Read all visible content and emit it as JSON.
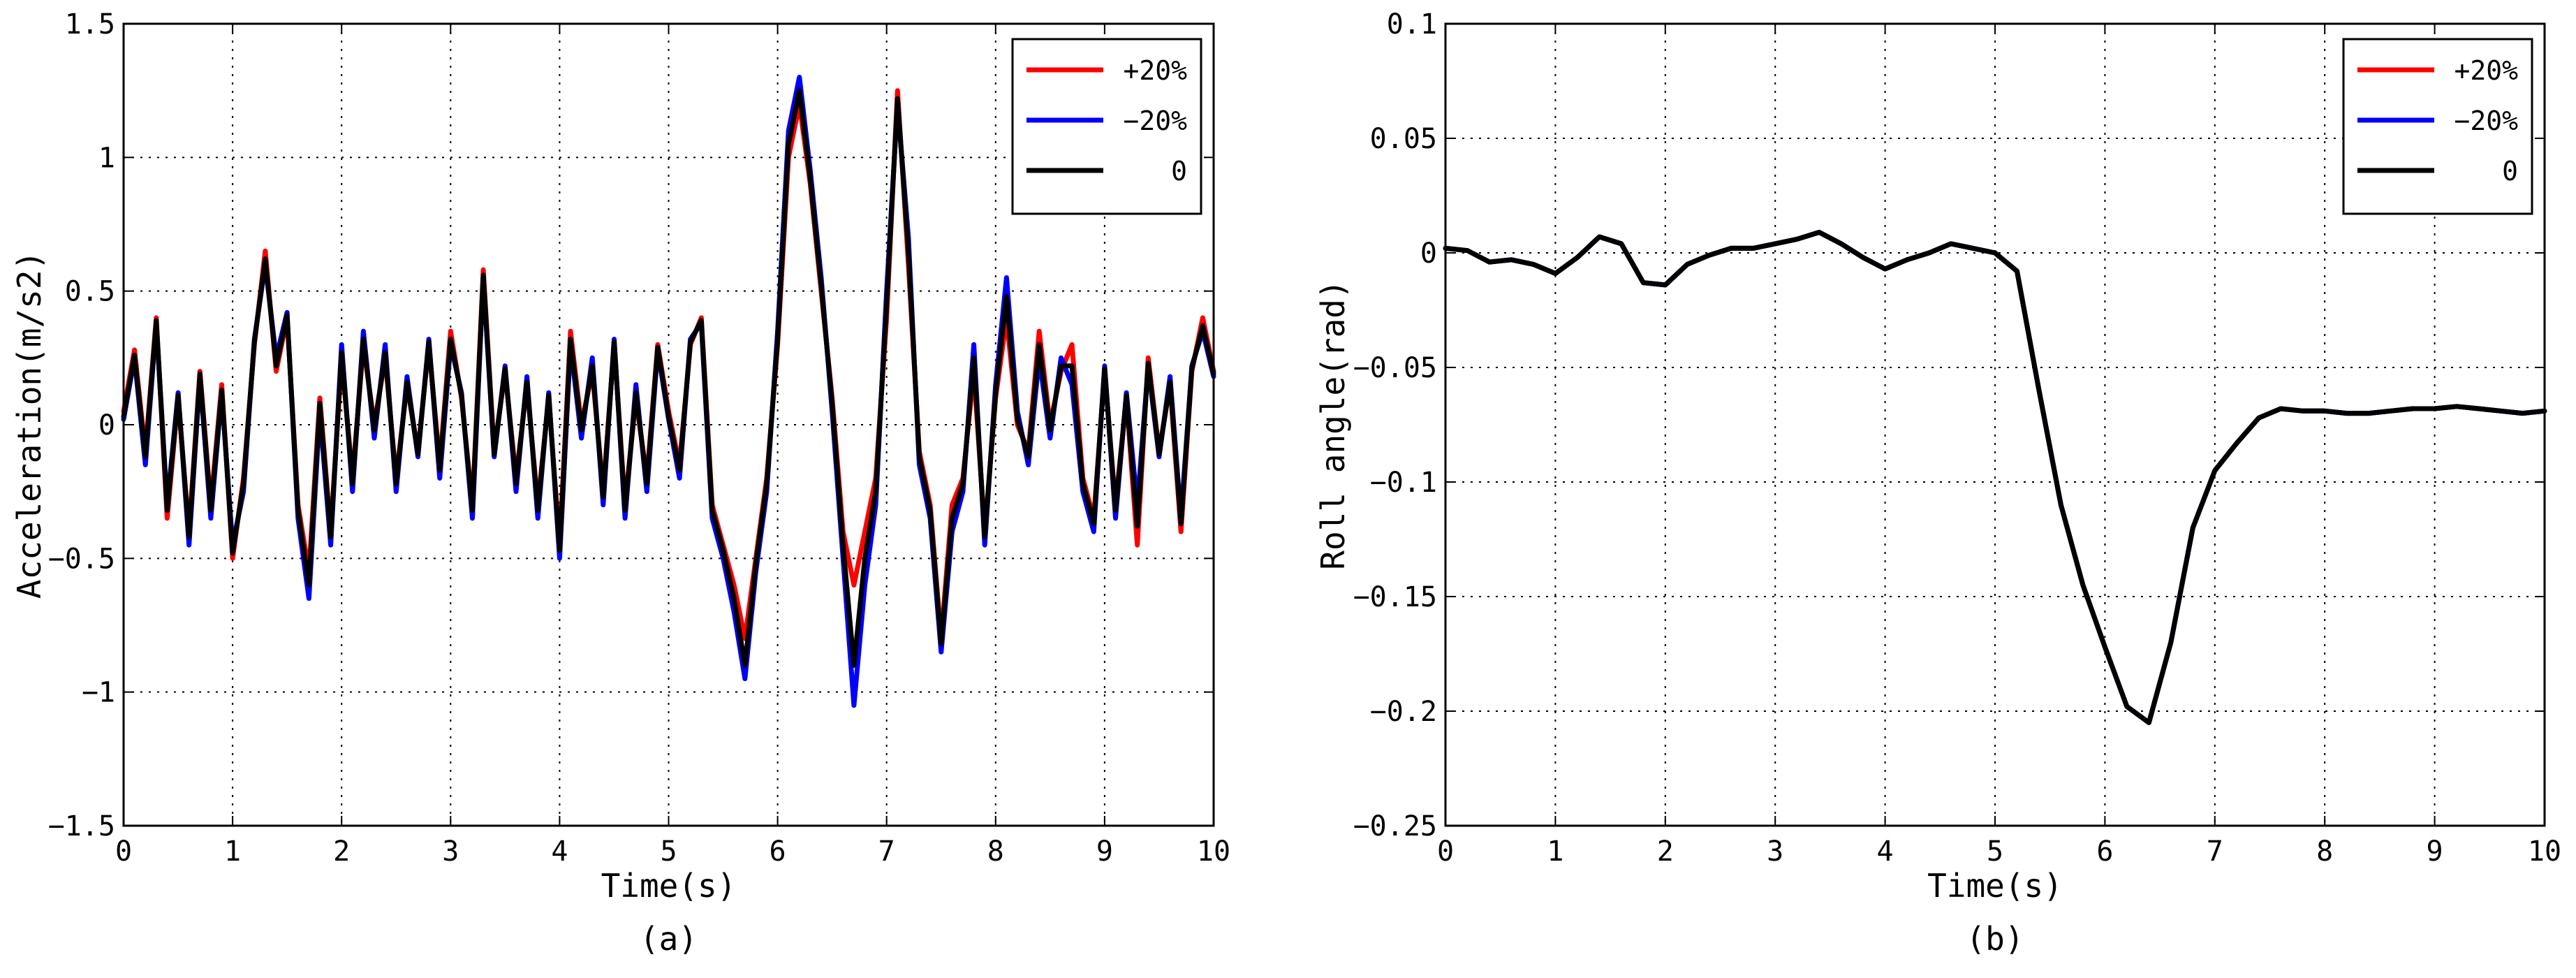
{
  "chart_data": [
    {
      "type": "line",
      "caption": "(a)",
      "xlabel": "Time(s)",
      "ylabel": "Acceleration(m/s2)",
      "xlim": [
        0,
        10
      ],
      "ylim": [
        -1.5,
        1.5
      ],
      "xticks": [
        0,
        1,
        2,
        3,
        4,
        5,
        6,
        7,
        8,
        9,
        10
      ],
      "yticks": [
        -1.5,
        -1,
        -0.5,
        0,
        0.5,
        1,
        1.5
      ],
      "xtick_labels": [
        "0",
        "1",
        "2",
        "3",
        "4",
        "5",
        "6",
        "7",
        "8",
        "9",
        "10"
      ],
      "ytick_labels": [
        "-1.5",
        "-1",
        "-0.5",
        "0",
        "0.5",
        "1",
        "1.5"
      ],
      "grid": true,
      "legend_position": "top-right",
      "x": [
        0,
        0.1,
        0.2,
        0.3,
        0.4,
        0.5,
        0.6,
        0.7,
        0.8,
        0.9,
        1.0,
        1.1,
        1.2,
        1.3,
        1.4,
        1.5,
        1.6,
        1.7,
        1.8,
        1.9,
        2.0,
        2.1,
        2.2,
        2.3,
        2.4,
        2.5,
        2.6,
        2.7,
        2.8,
        2.9,
        3.0,
        3.1,
        3.2,
        3.3,
        3.4,
        3.5,
        3.6,
        3.7,
        3.8,
        3.9,
        4.0,
        4.1,
        4.2,
        4.3,
        4.4,
        4.5,
        4.6,
        4.7,
        4.8,
        4.9,
        5.0,
        5.1,
        5.2,
        5.3,
        5.4,
        5.5,
        5.6,
        5.7,
        5.8,
        5.9,
        6.0,
        6.1,
        6.2,
        6.3,
        6.4,
        6.5,
        6.6,
        6.7,
        6.8,
        6.9,
        7.0,
        7.1,
        7.2,
        7.3,
        7.4,
        7.5,
        7.6,
        7.7,
        7.8,
        7.9,
        8.0,
        8.1,
        8.2,
        8.3,
        8.4,
        8.5,
        8.6,
        8.7,
        8.8,
        8.9,
        9.0,
        9.1,
        9.2,
        9.3,
        9.4,
        9.5,
        9.6,
        9.7,
        9.8,
        9.9,
        10.0
      ],
      "series": [
        {
          "name": "+20%",
          "color": "#ff0000",
          "values": [
            0.05,
            0.28,
            -0.1,
            0.4,
            -0.35,
            0.1,
            -0.4,
            0.2,
            -0.3,
            0.15,
            -0.5,
            -0.2,
            0.3,
            0.65,
            0.2,
            0.4,
            -0.3,
            -0.55,
            0.1,
            -0.4,
            0.25,
            -0.2,
            0.3,
            0.0,
            0.25,
            -0.2,
            0.15,
            -0.1,
            0.3,
            -0.15,
            0.35,
            0.1,
            -0.3,
            0.58,
            -0.1,
            0.2,
            -0.2,
            0.15,
            -0.3,
            0.1,
            -0.45,
            0.35,
            0.0,
            0.2,
            -0.25,
            0.3,
            -0.3,
            0.1,
            -0.2,
            0.3,
            0.05,
            -0.15,
            0.3,
            0.4,
            -0.3,
            -0.45,
            -0.6,
            -0.8,
            -0.5,
            -0.2,
            0.3,
            1.0,
            1.2,
            0.9,
            0.5,
            0.1,
            -0.4,
            -0.6,
            -0.4,
            -0.2,
            0.4,
            1.25,
            0.6,
            -0.1,
            -0.3,
            -0.8,
            -0.3,
            -0.2,
            0.2,
            -0.4,
            0.1,
            0.4,
            0.0,
            -0.1,
            0.35,
            0.0,
            0.2,
            0.3,
            -0.2,
            -0.35,
            0.2,
            -0.3,
            0.1,
            -0.45,
            0.25,
            -0.1,
            0.15,
            -0.4,
            0.2,
            0.4,
            0.2
          ]
        },
        {
          "name": "-20%",
          "color": "#0000ff",
          "values": [
            0.02,
            0.25,
            -0.15,
            0.38,
            -0.3,
            0.12,
            -0.45,
            0.18,
            -0.35,
            0.12,
            -0.45,
            -0.25,
            0.32,
            0.6,
            0.25,
            0.42,
            -0.35,
            -0.65,
            0.05,
            -0.45,
            0.3,
            -0.25,
            0.35,
            -0.05,
            0.3,
            -0.25,
            0.18,
            -0.12,
            0.32,
            -0.2,
            0.3,
            0.12,
            -0.35,
            0.55,
            -0.12,
            0.22,
            -0.25,
            0.18,
            -0.35,
            0.12,
            -0.5,
            0.3,
            -0.05,
            0.25,
            -0.3,
            0.32,
            -0.35,
            0.15,
            -0.25,
            0.28,
            0.02,
            -0.2,
            0.32,
            0.38,
            -0.35,
            -0.5,
            -0.7,
            -0.95,
            -0.55,
            -0.25,
            0.35,
            1.1,
            1.3,
            0.95,
            0.55,
            0.05,
            -0.5,
            -1.05,
            -0.6,
            -0.3,
            0.5,
            1.2,
            0.7,
            -0.15,
            -0.35,
            -0.85,
            -0.4,
            -0.25,
            0.3,
            -0.45,
            0.15,
            0.55,
            0.05,
            -0.15,
            0.25,
            -0.05,
            0.25,
            0.15,
            -0.25,
            -0.4,
            0.22,
            -0.35,
            0.12,
            -0.3,
            0.22,
            -0.12,
            0.18,
            -0.35,
            0.22,
            0.35,
            0.18
          ]
        },
        {
          "name": "0",
          "color": "#000000",
          "values": [
            0.03,
            0.26,
            -0.12,
            0.39,
            -0.32,
            0.11,
            -0.42,
            0.19,
            -0.32,
            0.13,
            -0.48,
            -0.22,
            0.31,
            0.62,
            0.22,
            0.41,
            -0.32,
            -0.6,
            0.08,
            -0.42,
            0.27,
            -0.22,
            0.32,
            -0.02,
            0.27,
            -0.22,
            0.16,
            -0.11,
            0.31,
            -0.17,
            0.32,
            0.11,
            -0.32,
            0.56,
            -0.11,
            0.21,
            -0.22,
            0.16,
            -0.32,
            0.11,
            -0.47,
            0.32,
            -0.02,
            0.22,
            -0.27,
            0.31,
            -0.32,
            0.12,
            -0.22,
            0.29,
            0.03,
            -0.17,
            0.31,
            0.39,
            -0.32,
            -0.47,
            -0.65,
            -0.9,
            -0.52,
            -0.22,
            0.32,
            1.05,
            1.25,
            0.92,
            0.52,
            0.08,
            -0.45,
            -0.9,
            -0.5,
            -0.25,
            0.45,
            1.22,
            0.65,
            -0.12,
            -0.32,
            -0.82,
            -0.35,
            -0.22,
            0.25,
            -0.42,
            0.12,
            0.48,
            0.02,
            -0.12,
            0.3,
            -0.02,
            0.22,
            0.22,
            -0.22,
            -0.37,
            0.21,
            -0.32,
            0.11,
            -0.38,
            0.23,
            -0.11,
            0.16,
            -0.37,
            0.21,
            0.37,
            0.19
          ]
        }
      ]
    },
    {
      "type": "line",
      "caption": "(b)",
      "xlabel": "Time(s)",
      "ylabel": "Roll angle(rad)",
      "xlim": [
        0,
        10
      ],
      "ylim": [
        -0.25,
        0.1
      ],
      "xticks": [
        0,
        1,
        2,
        3,
        4,
        5,
        6,
        7,
        8,
        9,
        10
      ],
      "yticks": [
        -0.25,
        -0.2,
        -0.15,
        -0.1,
        -0.05,
        0,
        0.05,
        0.1
      ],
      "xtick_labels": [
        "0",
        "1",
        "2",
        "3",
        "4",
        "5",
        "6",
        "7",
        "8",
        "9",
        "10"
      ],
      "ytick_labels": [
        "-0.25",
        "-0.2",
        "-0.15",
        "-0.1",
        "-0.05",
        "0",
        "0.05",
        "0.1"
      ],
      "grid": true,
      "legend_position": "top-right",
      "x": [
        0,
        0.2,
        0.4,
        0.6,
        0.8,
        1.0,
        1.2,
        1.4,
        1.6,
        1.8,
        2.0,
        2.2,
        2.4,
        2.6,
        2.8,
        3.0,
        3.2,
        3.4,
        3.6,
        3.8,
        4.0,
        4.2,
        4.4,
        4.6,
        4.8,
        5.0,
        5.2,
        5.4,
        5.6,
        5.8,
        6.0,
        6.2,
        6.4,
        6.6,
        6.8,
        7.0,
        7.2,
        7.4,
        7.6,
        7.8,
        8.0,
        8.2,
        8.4,
        8.6,
        8.8,
        9.0,
        9.2,
        9.4,
        9.6,
        9.8,
        10.0
      ],
      "series": [
        {
          "name": "+20%",
          "color": "#ff0000",
          "values": [
            0.002,
            0.001,
            -0.004,
            -0.003,
            -0.005,
            -0.009,
            -0.002,
            0.007,
            0.004,
            -0.013,
            -0.014,
            -0.005,
            -0.001,
            0.002,
            0.002,
            0.004,
            0.006,
            0.009,
            0.004,
            -0.002,
            -0.007,
            -0.003,
            0.0,
            0.004,
            0.002,
            0.0,
            -0.008,
            -0.06,
            -0.11,
            -0.145,
            -0.172,
            -0.198,
            -0.205,
            -0.17,
            -0.12,
            -0.095,
            -0.083,
            -0.072,
            -0.068,
            -0.069,
            -0.069,
            -0.07,
            -0.07,
            -0.069,
            -0.068,
            -0.068,
            -0.067,
            -0.068,
            -0.069,
            -0.07,
            -0.069
          ]
        },
        {
          "name": "-20%",
          "color": "#0000ff",
          "values": [
            0.002,
            0.001,
            -0.004,
            -0.003,
            -0.005,
            -0.009,
            -0.002,
            0.007,
            0.004,
            -0.013,
            -0.014,
            -0.005,
            -0.001,
            0.002,
            0.002,
            0.004,
            0.006,
            0.009,
            0.004,
            -0.002,
            -0.007,
            -0.003,
            0.0,
            0.004,
            0.002,
            0.0,
            -0.008,
            -0.06,
            -0.11,
            -0.145,
            -0.172,
            -0.198,
            -0.205,
            -0.17,
            -0.12,
            -0.095,
            -0.083,
            -0.072,
            -0.068,
            -0.069,
            -0.069,
            -0.07,
            -0.07,
            -0.069,
            -0.068,
            -0.068,
            -0.067,
            -0.068,
            -0.069,
            -0.07,
            -0.069
          ]
        },
        {
          "name": "0",
          "color": "#000000",
          "values": [
            0.002,
            0.001,
            -0.004,
            -0.003,
            -0.005,
            -0.009,
            -0.002,
            0.007,
            0.004,
            -0.013,
            -0.014,
            -0.005,
            -0.001,
            0.002,
            0.002,
            0.004,
            0.006,
            0.009,
            0.004,
            -0.002,
            -0.007,
            -0.003,
            0.0,
            0.004,
            0.002,
            0.0,
            -0.008,
            -0.06,
            -0.11,
            -0.145,
            -0.172,
            -0.198,
            -0.205,
            -0.17,
            -0.12,
            -0.095,
            -0.083,
            -0.072,
            -0.068,
            -0.069,
            -0.069,
            -0.07,
            -0.07,
            -0.069,
            -0.068,
            -0.068,
            -0.067,
            -0.068,
            -0.069,
            -0.07,
            -0.069
          ]
        }
      ]
    }
  ]
}
